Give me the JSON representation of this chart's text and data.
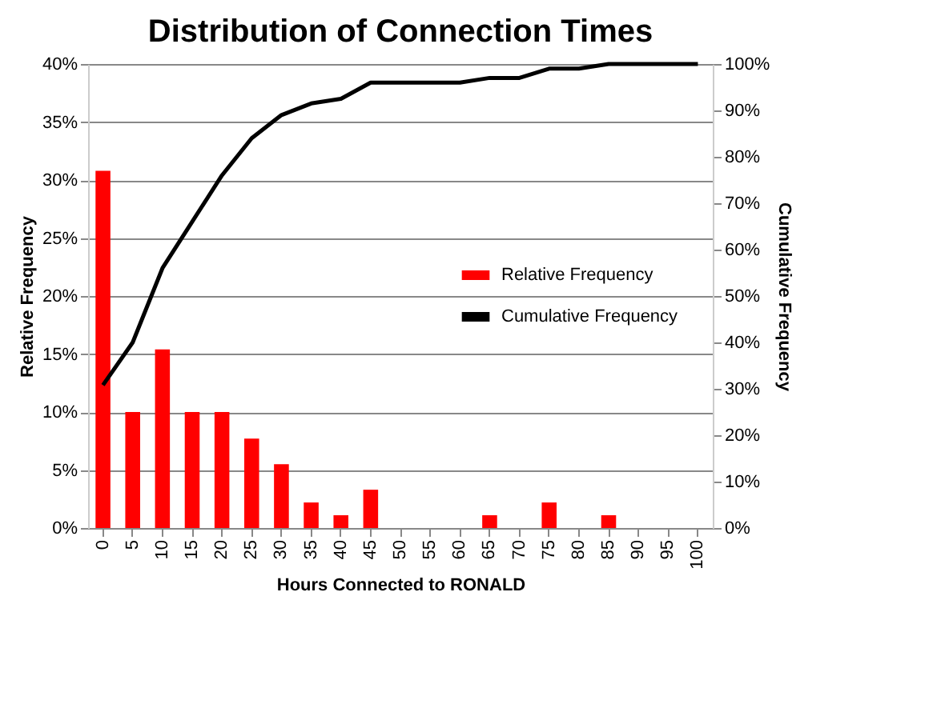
{
  "chart_data": {
    "type": "bar",
    "title": "Distribution of Connection Times",
    "xlabel": "Hours Connected to RONALD",
    "ylabel": "Relative Frequency",
    "y2label": "Cumulative Frequency",
    "categories": [
      "0",
      "5",
      "10",
      "15",
      "20",
      "25",
      "30",
      "35",
      "40",
      "45",
      "50",
      "55",
      "60",
      "65",
      "70",
      "75",
      "80",
      "85",
      "90",
      "95",
      "100"
    ],
    "series": [
      {
        "name": "Relative Frequency",
        "color": "#ff0000",
        "values": [
          30.8,
          10,
          15.4,
          10,
          10,
          7.7,
          5.5,
          2.2,
          1.1,
          3.3,
          0,
          0,
          0,
          1.1,
          0,
          2.2,
          0,
          1.1,
          0,
          0,
          0
        ]
      },
      {
        "name": "Cumulative Frequency",
        "type": "line",
        "axis": "y2",
        "color": "#000000",
        "values": [
          30.8,
          40,
          56,
          66,
          76,
          84,
          89,
          91.5,
          92.5,
          96,
          96,
          96,
          96,
          97,
          97,
          99,
          99,
          100,
          100,
          100,
          100
        ]
      }
    ],
    "ylim": [
      0,
      40
    ],
    "yticks": [
      {
        "value": 0,
        "label": "0%"
      },
      {
        "value": 5,
        "label": "5%"
      },
      {
        "value": 10,
        "label": "10%"
      },
      {
        "value": 15,
        "label": "15%"
      },
      {
        "value": 20,
        "label": "20%"
      },
      {
        "value": 25,
        "label": "25%"
      },
      {
        "value": 30,
        "label": "30%"
      },
      {
        "value": 35,
        "label": "35%"
      },
      {
        "value": 40,
        "label": "40%"
      }
    ],
    "y2lim": [
      0,
      100
    ],
    "y2ticks": [
      {
        "value": 0,
        "label": "0%"
      },
      {
        "value": 10,
        "label": "10%"
      },
      {
        "value": 20,
        "label": "20%"
      },
      {
        "value": 30,
        "label": "30%"
      },
      {
        "value": 40,
        "label": "40%"
      },
      {
        "value": 50,
        "label": "50%"
      },
      {
        "value": 60,
        "label": "60%"
      },
      {
        "value": 70,
        "label": "70%"
      },
      {
        "value": 80,
        "label": "80%"
      },
      {
        "value": 90,
        "label": "90%"
      },
      {
        "value": 100,
        "label": "100%"
      }
    ],
    "grid": "y",
    "legend": "right",
    "marker": "none",
    "line_style": "solid"
  }
}
